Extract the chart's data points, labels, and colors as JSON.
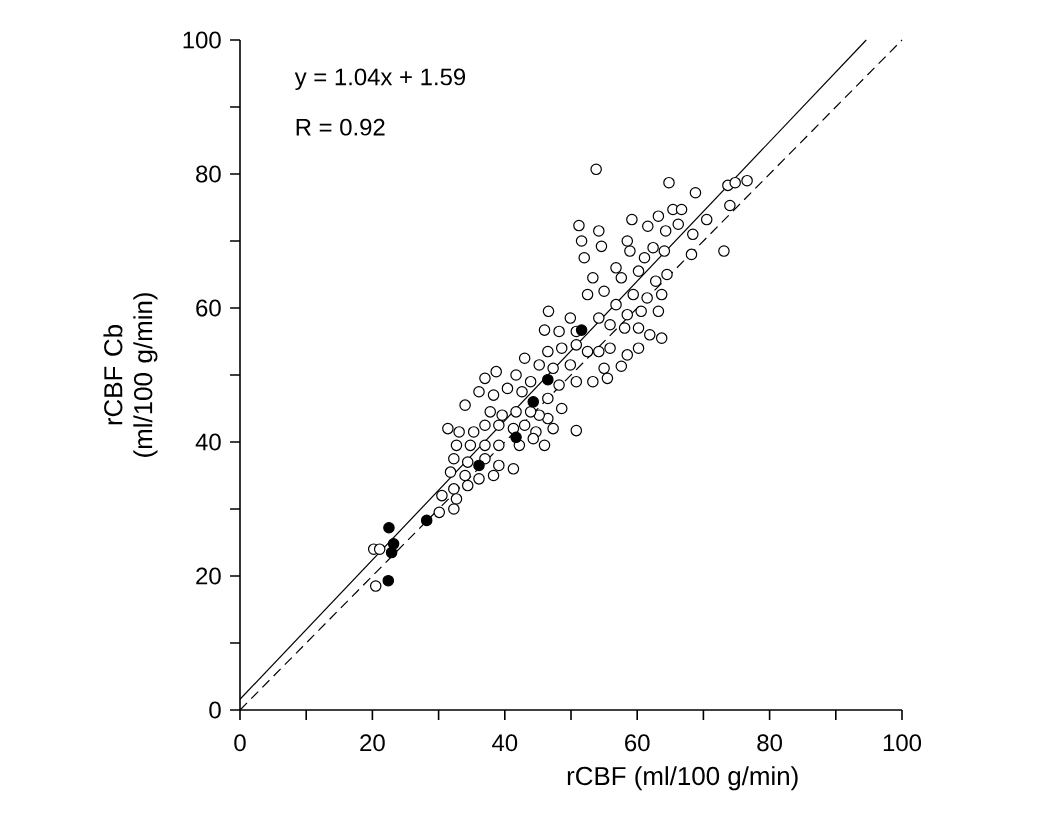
{
  "chart_data": {
    "type": "scatter",
    "xlabel": "rCBF  (ml/100  g/min)",
    "ylabel": "rCBF Cb (ml/100  g/min)",
    "annotations": [
      "y = 1.04x + 1.59",
      "R = 0.92"
    ],
    "xlim": [
      0,
      100
    ],
    "ylim": [
      0,
      100
    ],
    "xticks": [
      0,
      {
        "value": 10,
        "label": null
      },
      20,
      {
        "value": 30,
        "label": null
      },
      40,
      {
        "value": 50,
        "label": null
      },
      60,
      {
        "value": 70,
        "label": null
      },
      80,
      {
        "value": 90,
        "label": null
      },
      100
    ],
    "yticks": [
      0,
      {
        "value": 10,
        "label": null
      },
      20,
      {
        "value": 30,
        "label": null
      },
      40,
      {
        "value": 50,
        "label": null
      },
      60,
      {
        "value": 70,
        "label": null
      },
      80,
      {
        "value": 90,
        "label": null
      },
      100
    ],
    "marker": "circle",
    "series": [
      {
        "color": "#000000",
        "x": [
          53.8,
          64.8,
          68.8,
          73.7,
          74.8,
          76.6,
          74,
          73.1,
          68.2,
          70.5,
          59.2,
          61.6,
          63.2,
          65.4,
          66.7,
          64.3,
          66.2,
          68.4,
          51.2,
          51.6,
          54.2,
          54.6,
          52,
          56.8,
          58.9,
          61.1,
          62.4,
          64.1,
          64.5,
          53.3,
          55,
          57.6,
          60.2,
          62.8,
          59.4,
          61.5,
          63.7,
          52.5,
          56.8,
          58.5,
          60.6,
          63.2,
          54.2,
          55.9,
          58.1,
          60.2,
          61.9,
          63.7,
          46.6,
          46,
          48.2,
          49.9,
          50.8,
          46.5,
          48.6,
          50.8,
          52.5,
          54.2,
          55.9,
          58.5,
          60.2,
          55,
          57.6,
          53.3,
          55.5,
          43,
          45.2,
          47.3,
          49.9,
          41.7,
          43.9,
          48.2,
          50.8,
          37,
          38.7,
          36.1,
          38.3,
          40.4,
          42.6,
          46.5,
          48.6,
          46.5,
          45.2,
          34,
          37.8,
          39.6,
          41.7,
          43.9,
          37,
          39.1,
          41.3,
          43,
          44.7,
          47.3,
          50.8,
          31.4,
          33.1,
          35.3,
          32.7,
          34.8,
          37,
          39.1,
          42.2,
          44.3,
          46,
          32.3,
          34.4,
          37,
          39.1,
          41.3,
          31.8,
          34,
          36.1,
          38.3,
          32.3,
          34.4,
          30.5,
          32.7,
          30.1,
          32.3,
          20.2,
          21.1,
          20.5,
          58.5
        ],
        "values": [
          80.7,
          78.7,
          77.2,
          78.3,
          78.7,
          79,
          75.3,
          68.5,
          68,
          73.2,
          73.2,
          72.2,
          73.7,
          74.7,
          74.7,
          71.5,
          72.5,
          71,
          72.3,
          70,
          71.5,
          69.2,
          67.5,
          66,
          68.5,
          67.5,
          69,
          68.5,
          65,
          64.5,
          62.5,
          64.5,
          65.5,
          64,
          62,
          61.5,
          62,
          62,
          60.5,
          59,
          59.5,
          59.5,
          58.5,
          57.5,
          57,
          57,
          56,
          55.5,
          59.5,
          56.7,
          56.5,
          58.5,
          56.5,
          53.5,
          54,
          54.5,
          53.5,
          53.5,
          54,
          53,
          54,
          51,
          51.3,
          49,
          49.5,
          52.5,
          51.5,
          51,
          51.5,
          50,
          49,
          48.5,
          49,
          49.5,
          50.5,
          47.5,
          47,
          48,
          47.5,
          46.5,
          45,
          43.5,
          44,
          45.5,
          44.5,
          44,
          44.5,
          44.5,
          42.5,
          42.5,
          42,
          42.5,
          41.5,
          42,
          41.7,
          42,
          41.5,
          41.5,
          39.5,
          39.5,
          39.5,
          39.5,
          39.5,
          40.5,
          39.5,
          37.5,
          37,
          37.5,
          36.5,
          36,
          35.5,
          35,
          34.5,
          35,
          33,
          33.5,
          32,
          31.5,
          29.5,
          30,
          24,
          24,
          18.5,
          70
        ]
      },
      {
        "color": "#000000",
        "x": [
          22.5,
          23.2,
          22.9,
          22.4,
          28.2,
          41.7,
          44.3,
          46.5,
          51.6,
          36.1
        ],
        "values": [
          27.2,
          24.8,
          23.5,
          19.3,
          28.3,
          40.7,
          46,
          49.3,
          56.7,
          36.5
        ]
      },
      {
        "type": "line",
        "color": "#000000",
        "line_style": "solid",
        "marker": "none",
        "x": [
          0,
          94.6
        ],
        "values": [
          1.6,
          100
        ]
      },
      {
        "type": "line",
        "color": "#000000",
        "line_style": "dashed",
        "marker": "none",
        "x": [
          0,
          100
        ],
        "values": [
          0,
          100
        ]
      }
    ]
  }
}
